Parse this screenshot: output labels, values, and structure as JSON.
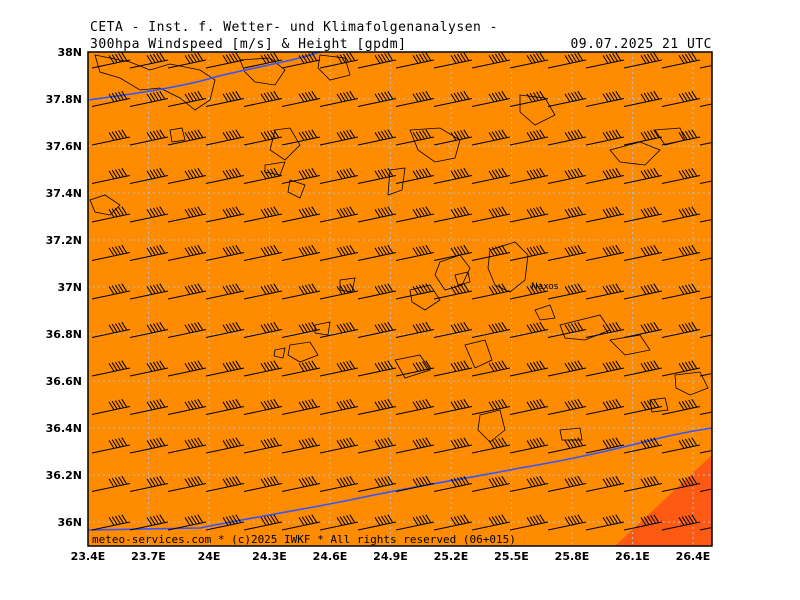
{
  "header": {
    "title": "CETA - Inst. f. Wetter- und Klimafolgenanalysen -",
    "subtitle": "300hpa Windspeed [m/s] & Height [gpdm]",
    "datetime": "09.07.2025 21 UTC"
  },
  "footer": {
    "credit": "meteo-services.com * (c)2025 IWKF * All rights reserved (06+015)"
  },
  "map": {
    "lon_labels": [
      "23.4E",
      "23.7E",
      "24E",
      "24.3E",
      "24.6E",
      "24.9E",
      "25.2E",
      "25.5E",
      "25.8E",
      "26.1E",
      "26.4E"
    ],
    "lat_labels": [
      "38N",
      "37.8N",
      "37.6N",
      "37.4N",
      "37.2N",
      "37N",
      "36.8N",
      "36.6N",
      "36.4N",
      "36.2N",
      "36N"
    ],
    "place_labels": [
      "Naxos"
    ],
    "colors": {
      "windspeed_fill": "#ff8c00",
      "windspeed_high": "#ff5a14",
      "height_contour": "#3355ff",
      "coastline": "#000000",
      "grid": "#bbbbbb"
    }
  }
}
